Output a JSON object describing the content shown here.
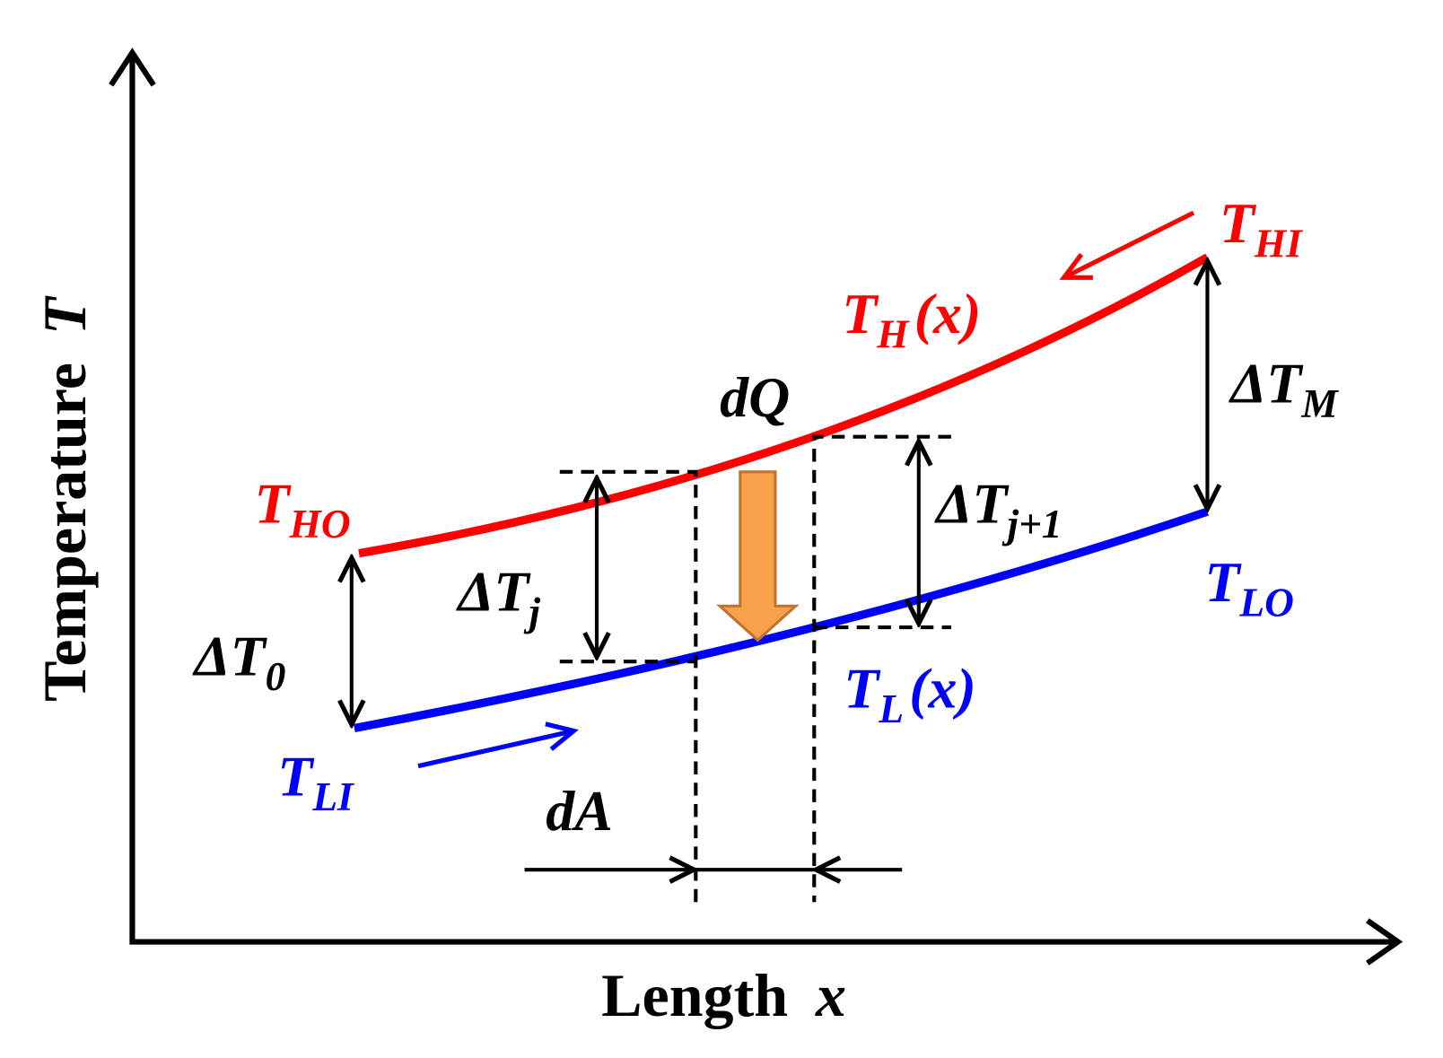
{
  "axes": {
    "x_label": {
      "text": "Length",
      "var": "x"
    },
    "y_label": {
      "text": "Temperature",
      "var": "T"
    }
  },
  "labels": [
    {
      "main": "T",
      "sub": "HI"
    },
    {
      "main": "T",
      "sub": "H",
      "suffix": "(x)"
    },
    {
      "main": "ΔT",
      "sub": "M"
    },
    {
      "main": "dQ"
    },
    {
      "main": "T",
      "sub": "HO"
    },
    {
      "main": "ΔT",
      "sub": "j"
    },
    {
      "main": "ΔT",
      "sub": "j+1"
    },
    {
      "main": "T",
      "sub": "LO"
    },
    {
      "main": "ΔT",
      "sub": "0"
    },
    {
      "main": "T",
      "sub": "L",
      "suffix": "(x)"
    },
    {
      "main": "T",
      "sub": "LI"
    },
    {
      "main": "dA"
    }
  ]
}
